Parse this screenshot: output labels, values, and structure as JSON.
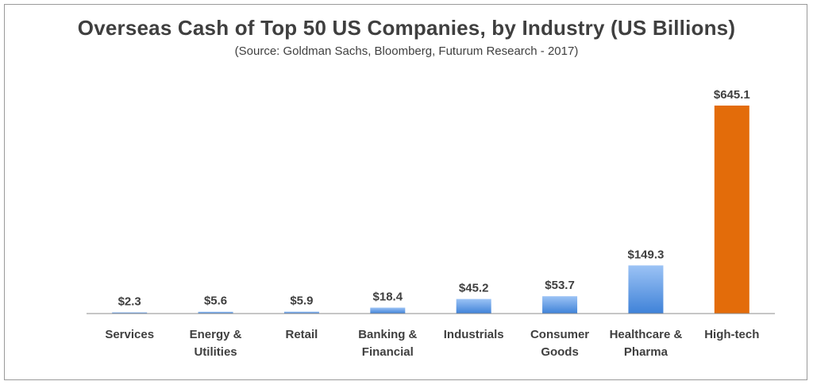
{
  "chart_data": {
    "type": "bar",
    "title": "Overseas Cash of Top 50 US Companies, by Industry (US Billions)",
    "subtitle": "(Source: Goldman Sachs, Bloomberg, Futurum Research - 2017)",
    "categories": [
      [
        "Services"
      ],
      [
        "Energy &",
        "Utilities"
      ],
      [
        "Retail"
      ],
      [
        "Banking &",
        "Financial"
      ],
      [
        "Industrials"
      ],
      [
        "Consumer",
        "Goods"
      ],
      [
        "Healthcare &",
        "Pharma"
      ],
      [
        "High-tech"
      ]
    ],
    "values": [
      2.3,
      5.6,
      5.9,
      18.4,
      45.2,
      53.7,
      149.3,
      645.1
    ],
    "data_labels": [
      "$2.3",
      "$5.6",
      "$5.9",
      "$18.4",
      "$45.2",
      "$53.7",
      "$149.3",
      "$645.1"
    ],
    "xlabel": "",
    "ylabel": "",
    "ylim": [
      0,
      645.1
    ],
    "grid": false,
    "legend": "none",
    "colors": {
      "default_bar_top": "#9cc3f5",
      "default_bar_bottom": "#3f82d8",
      "highlight_bar": "#e36c0a",
      "highlight_index": 7,
      "text": "#3f3f3f",
      "axis": "#8c8c8c"
    }
  }
}
